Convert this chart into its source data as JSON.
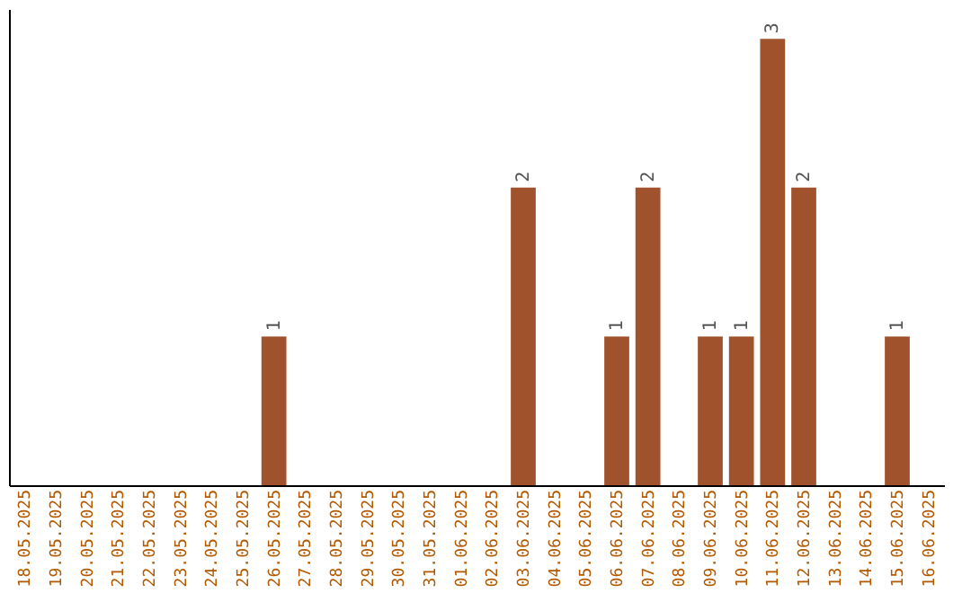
{
  "chart_data": {
    "type": "bar",
    "categories": [
      "18.05.2025",
      "19.05.2025",
      "20.05.2025",
      "21.05.2025",
      "22.05.2025",
      "23.05.2025",
      "24.05.2025",
      "25.05.2025",
      "26.05.2025",
      "27.05.2025",
      "28.05.2025",
      "29.05.2025",
      "30.05.2025",
      "31.05.2025",
      "01.06.2025",
      "02.06.2025",
      "03.06.2025",
      "04.06.2025",
      "05.06.2025",
      "06.06.2025",
      "07.06.2025",
      "08.06.2025",
      "09.06.2025",
      "10.06.2025",
      "11.06.2025",
      "12.06.2025",
      "13.06.2025",
      "14.06.2025",
      "15.06.2025",
      "16.06.2025"
    ],
    "values": [
      null,
      null,
      null,
      null,
      null,
      null,
      null,
      null,
      1,
      null,
      null,
      null,
      null,
      null,
      null,
      null,
      2,
      null,
      null,
      1,
      2,
      null,
      1,
      1,
      3,
      2,
      null,
      null,
      1,
      null
    ],
    "color": "#a0522d",
    "ylim": [
      0,
      3.2
    ],
    "data_labels": true,
    "tick_labels": "x",
    "grid": false
  }
}
